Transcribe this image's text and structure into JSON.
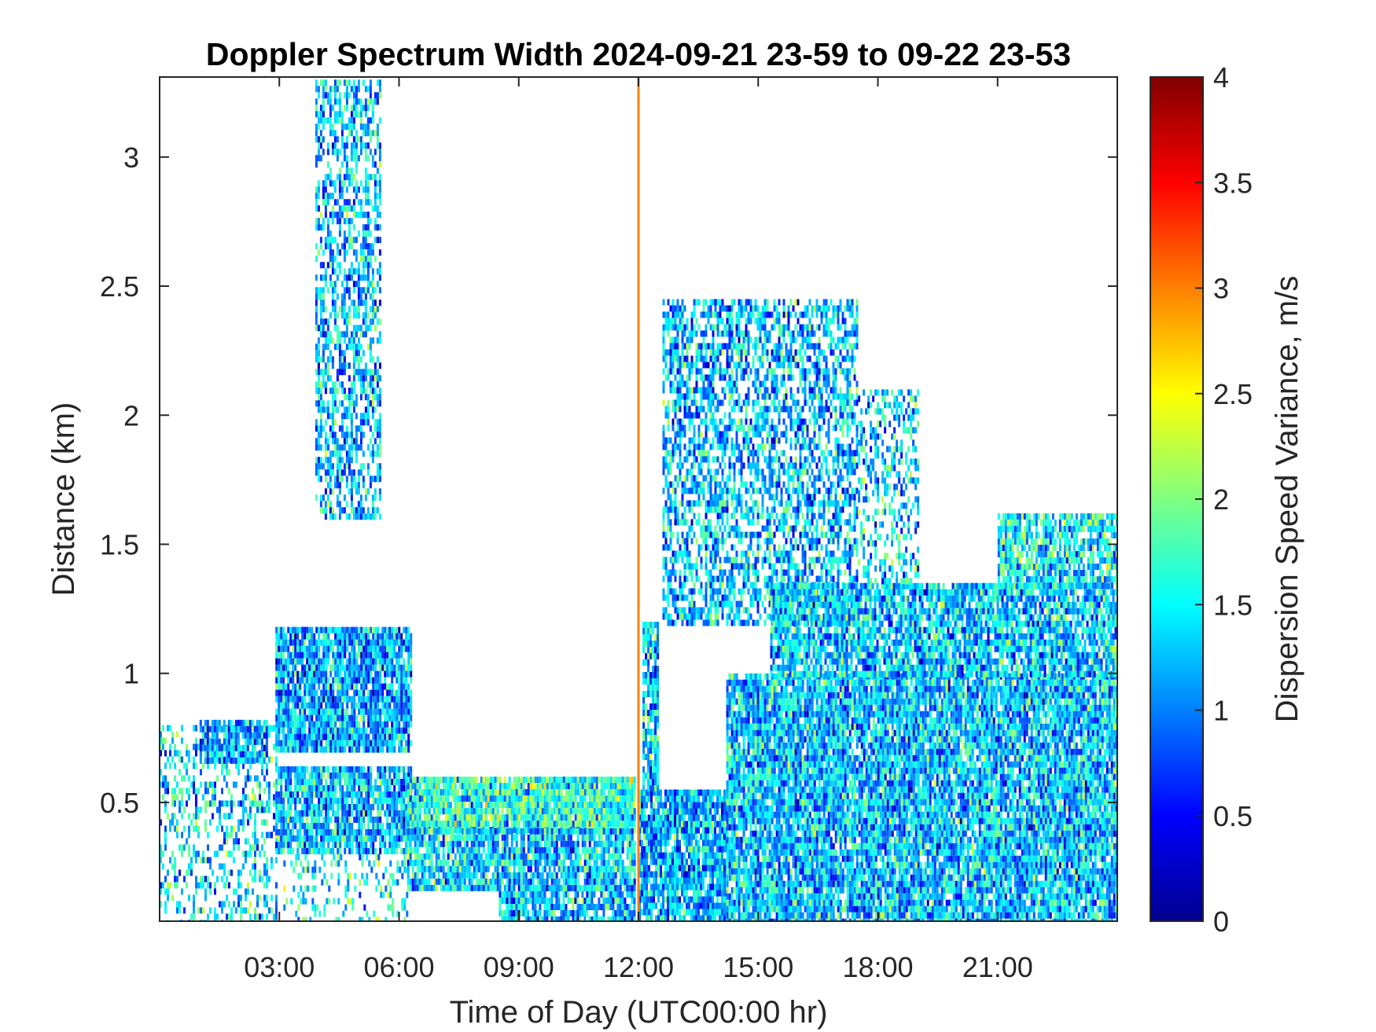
{
  "chart_data": {
    "type": "heatmap",
    "title": "Doppler Spectrum Width 2024-09-21 23-59 to 09-22 23-53",
    "xlabel": "Time of Day (UTC00:00 hr)",
    "ylabel": "Distance (km)",
    "colorbar_label": "Dispersion Speed Variance, m/s",
    "colormap": "jet",
    "xlim": [
      0,
      24
    ],
    "ylim": [
      0.04,
      3.31
    ],
    "clim": [
      0,
      4
    ],
    "x_ticks": [
      {
        "value": 3,
        "label": "03:00"
      },
      {
        "value": 6,
        "label": "06:00"
      },
      {
        "value": 9,
        "label": "09:00"
      },
      {
        "value": 12,
        "label": "12:00"
      },
      {
        "value": 15,
        "label": "15:00"
      },
      {
        "value": 18,
        "label": "18:00"
      },
      {
        "value": 21,
        "label": "21:00"
      }
    ],
    "y_ticks": [
      {
        "value": 0.5,
        "label": "0.5"
      },
      {
        "value": 1,
        "label": "1"
      },
      {
        "value": 1.5,
        "label": "1.5"
      },
      {
        "value": 2,
        "label": "2"
      },
      {
        "value": 2.5,
        "label": "2.5"
      },
      {
        "value": 3,
        "label": "3"
      }
    ],
    "colorbar_ticks": [
      {
        "value": 0,
        "label": "0"
      },
      {
        "value": 0.5,
        "label": "0.5"
      },
      {
        "value": 1,
        "label": "1"
      },
      {
        "value": 1.5,
        "label": "1.5"
      },
      {
        "value": 2,
        "label": "2"
      },
      {
        "value": 2.5,
        "label": "2.5"
      },
      {
        "value": 3,
        "label": "3"
      },
      {
        "value": 3.5,
        "label": "3.5"
      },
      {
        "value": 4,
        "label": "4"
      }
    ],
    "grid": false,
    "regions": [
      {
        "t0": 0.0,
        "t1": 2.9,
        "h0": 0.04,
        "h1": 0.8,
        "mean": 1.4,
        "density": 0.35
      },
      {
        "t0": 1.0,
        "t1": 2.7,
        "h0": 0.65,
        "h1": 0.82,
        "mean": 1.1,
        "density": 0.85
      },
      {
        "t0": 2.9,
        "t1": 6.3,
        "h0": 0.7,
        "h1": 1.18,
        "mean": 1.15,
        "density": 0.9
      },
      {
        "t0": 2.9,
        "t1": 6.3,
        "h0": 0.3,
        "h1": 0.64,
        "mean": 1.2,
        "density": 0.85
      },
      {
        "t0": 3.1,
        "t1": 6.2,
        "h0": 0.04,
        "h1": 0.3,
        "mean": 1.5,
        "density": 0.25
      },
      {
        "t0": 3.9,
        "t1": 5.5,
        "h0": 1.6,
        "h1": 3.3,
        "mean": 1.25,
        "density": 0.55
      },
      {
        "t0": 6.2,
        "t1": 11.9,
        "h0": 0.4,
        "h1": 0.6,
        "mean": 1.65,
        "density": 0.95
      },
      {
        "t0": 6.2,
        "t1": 11.9,
        "h0": 0.18,
        "h1": 0.4,
        "mean": 1.3,
        "density": 0.85
      },
      {
        "t0": 8.5,
        "t1": 11.9,
        "h0": 0.04,
        "h1": 0.18,
        "mean": 1.2,
        "density": 0.8
      },
      {
        "t0": 12.0,
        "t1": 14.2,
        "h0": 0.04,
        "h1": 0.55,
        "mean": 1.2,
        "density": 0.9
      },
      {
        "t0": 12.1,
        "t1": 12.5,
        "h0": 0.55,
        "h1": 1.2,
        "mean": 1.3,
        "density": 0.85
      },
      {
        "t0": 12.6,
        "t1": 17.5,
        "h0": 1.2,
        "h1": 2.45,
        "mean": 1.25,
        "density": 0.6
      },
      {
        "t0": 14.2,
        "t1": 24.0,
        "h0": 0.04,
        "h1": 1.0,
        "mean": 1.25,
        "density": 0.9
      },
      {
        "t0": 15.3,
        "t1": 24.0,
        "h0": 1.0,
        "h1": 1.35,
        "mean": 1.3,
        "density": 0.85
      },
      {
        "t0": 17.5,
        "t1": 19.0,
        "h0": 1.35,
        "h1": 2.1,
        "mean": 1.35,
        "density": 0.45
      },
      {
        "t0": 21.0,
        "t1": 24.0,
        "h0": 1.35,
        "h1": 1.62,
        "mean": 1.45,
        "density": 0.8
      }
    ],
    "vertical_streak": {
      "t": 12.0,
      "h0": 0.04,
      "h1": 3.31,
      "value": 3.0
    }
  }
}
